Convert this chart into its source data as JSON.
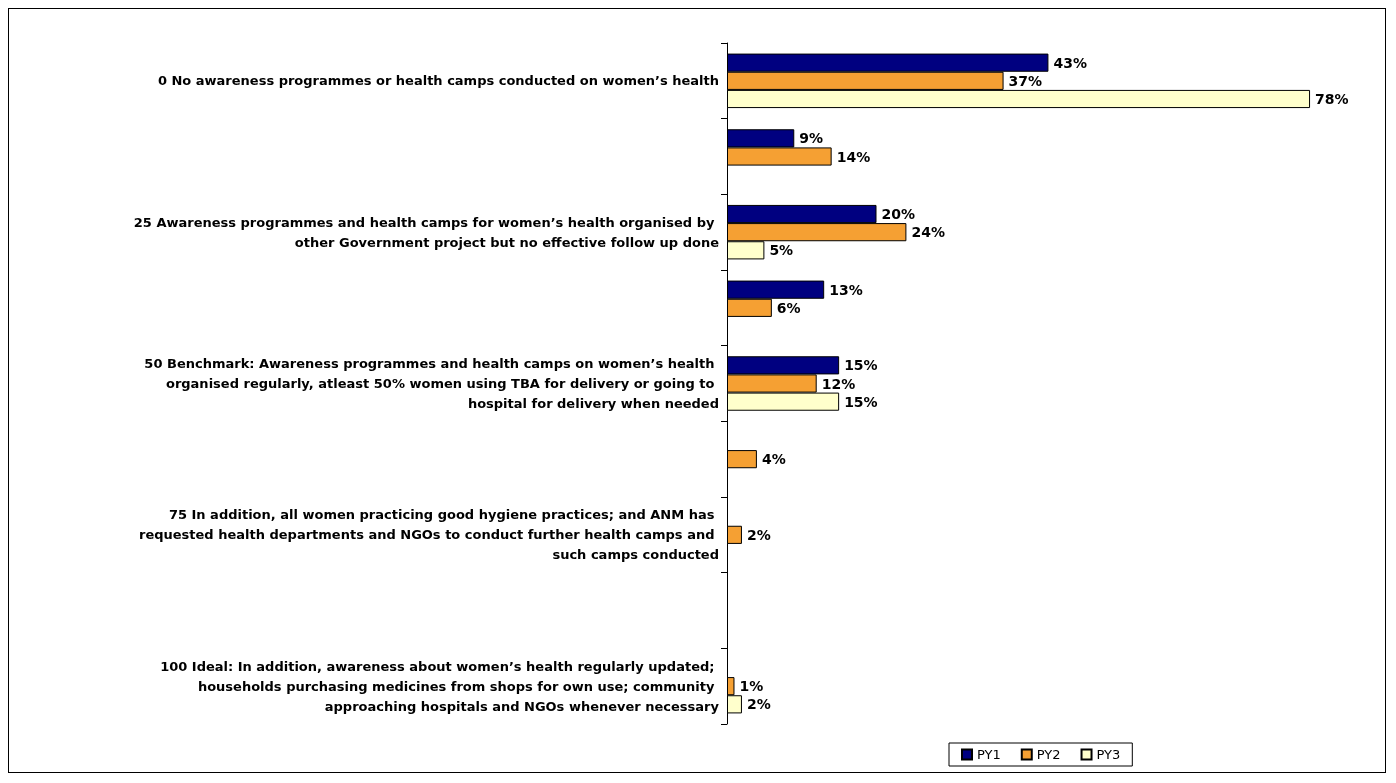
{
  "chart_data": {
    "type": "bar",
    "orientation": "horizontal",
    "categories": [
      "0 No awareness programmes or health camps conducted on women’s health",
      null,
      "25 Awareness programmes and health camps for women’s health organised by other Government project but no effective follow up done",
      null,
      "50 Benchmark: Awareness programmes and health camps on women’s health organised regularly, atleast 50% women using TBA for delivery or going to hospital for delivery when needed",
      null,
      "75 In addition, all women practicing good hygiene practices; and ANM has requested health departments and NGOs to conduct further health camps and such camps conducted",
      null,
      "100 Ideal: In addition, awareness about women’s health regularly updated; households purchasing medicines from shops for own use; community approaching hospitals and NGOs whenever necessary"
    ],
    "series": [
      {
        "name": "PY1",
        "color": "#000080",
        "values": [
          43,
          9,
          20,
          13,
          15,
          null,
          null,
          null,
          null
        ],
        "value_labels": [
          "43%",
          "9%",
          "20%",
          "13%",
          "15%",
          null,
          null,
          null,
          null
        ]
      },
      {
        "name": "PY2",
        "color": "#f5a033",
        "values": [
          37,
          14,
          24,
          6,
          12,
          4,
          2,
          null,
          1
        ],
        "value_labels": [
          "37%",
          "14%",
          "24%",
          "6%",
          "12%",
          "4%",
          "2%",
          null,
          "1%"
        ]
      },
      {
        "name": "PY3",
        "color": "#ffffcc",
        "values": [
          78,
          null,
          5,
          null,
          15,
          null,
          null,
          null,
          2
        ],
        "value_labels": [
          "78%",
          null,
          "5%",
          null,
          "15%",
          null,
          null,
          null,
          "2%"
        ]
      }
    ],
    "legend": "bottom",
    "grid": false
  }
}
